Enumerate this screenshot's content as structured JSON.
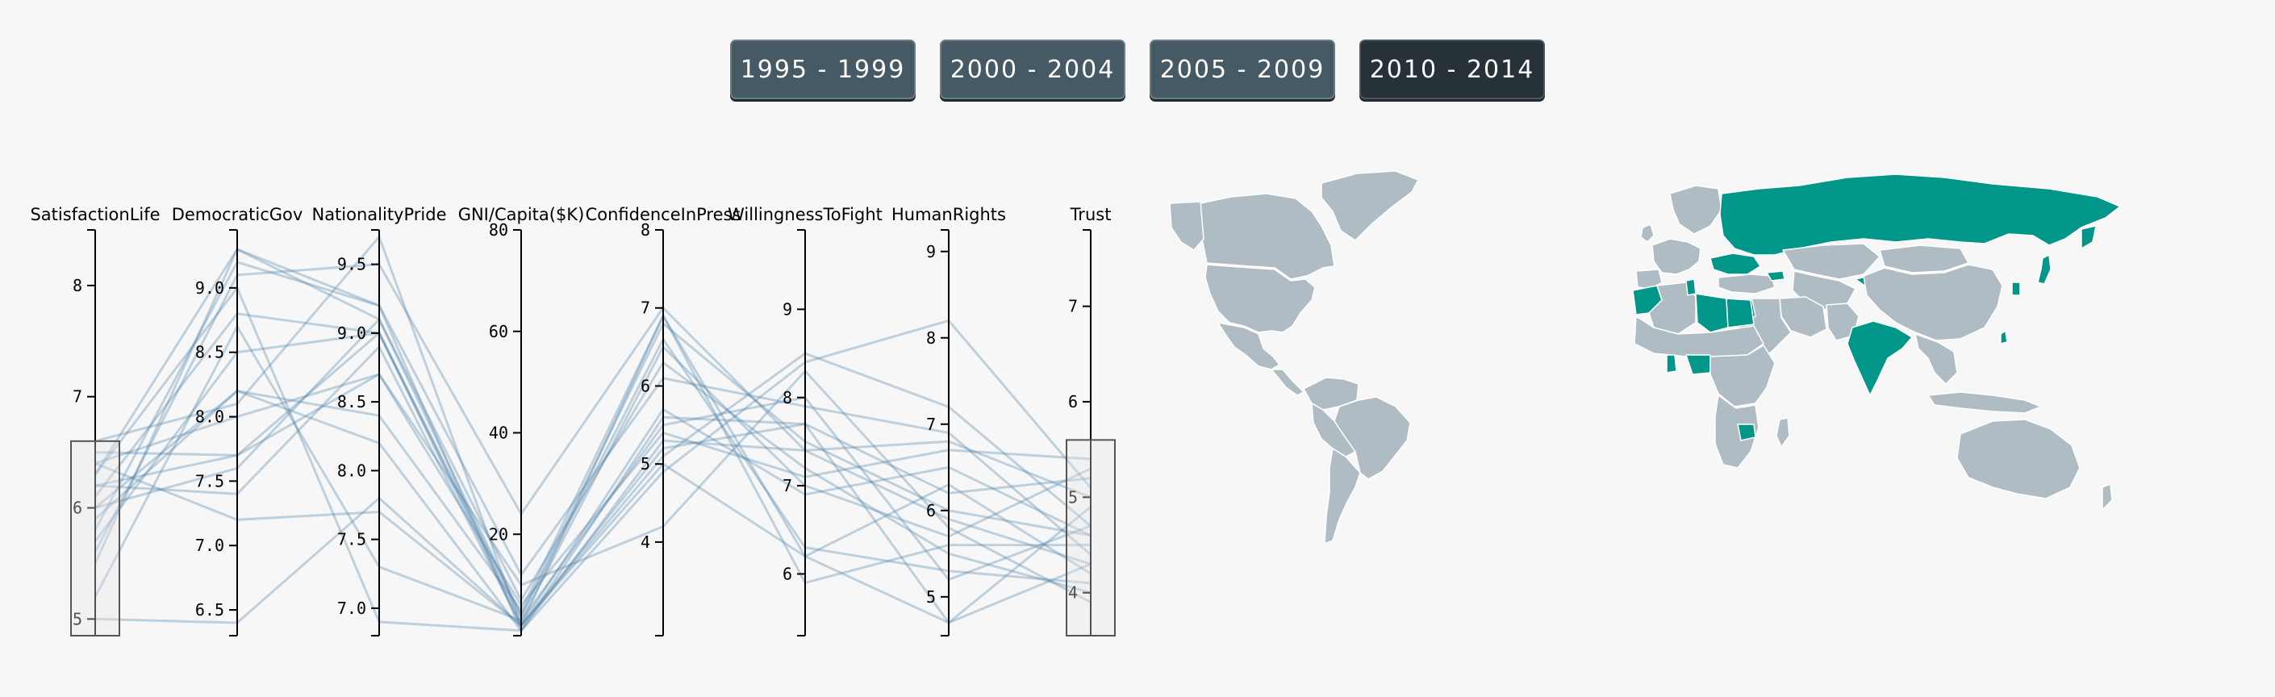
{
  "periods": [
    {
      "label": "1995 - 1999",
      "active": false
    },
    {
      "label": "2000 - 2004",
      "active": false
    },
    {
      "label": "2005 - 2009",
      "active": false
    },
    {
      "label": "2010 - 2014",
      "active": true
    }
  ],
  "colors": {
    "button": "#455a64",
    "button_active": "#263238",
    "line": "#4a7fa8",
    "highlight_country": "#00968a",
    "country": "#b0bcc3",
    "axis": "#000000"
  },
  "chart_data": {
    "type": "parallel-coordinates",
    "axes": [
      {
        "name": "SatisfactionLife",
        "domain": [
          4.85,
          8.5
        ],
        "ticks": [
          5,
          6,
          7,
          8
        ],
        "brush": [
          4.85,
          6.6
        ]
      },
      {
        "name": "DemocraticGov",
        "domain": [
          6.3,
          9.45
        ],
        "ticks": [
          6.5,
          7.0,
          7.5,
          8.0,
          8.5,
          9.0
        ],
        "decimals": 1
      },
      {
        "name": "NationalityPride",
        "domain": [
          6.8,
          9.75
        ],
        "ticks": [
          7.0,
          7.5,
          8.0,
          8.5,
          9.0,
          9.5
        ],
        "decimals": 1
      },
      {
        "name": "GNI/Capita($K)",
        "domain": [
          0,
          80
        ],
        "ticks": [
          20,
          40,
          60,
          80
        ]
      },
      {
        "name": "ConfidenceInPress",
        "domain": [
          2.8,
          8
        ],
        "ticks": [
          4,
          5,
          6,
          7,
          8
        ]
      },
      {
        "name": "WillingnessToFight",
        "domain": [
          5.3,
          9.9
        ],
        "ticks": [
          6,
          7,
          8,
          9
        ]
      },
      {
        "name": "HumanRights",
        "domain": [
          4.55,
          9.25
        ],
        "ticks": [
          5,
          6,
          7,
          8,
          9
        ]
      },
      {
        "name": "Trust",
        "domain": [
          3.55,
          7.8
        ],
        "ticks": [
          4,
          5,
          6,
          7
        ],
        "brush": [
          3.55,
          5.6
        ]
      }
    ],
    "lines": [
      [
        5.0,
        6.4,
        7.8,
        2,
        5.0,
        6.2,
        4.7,
        4.3
      ],
      [
        5.2,
        8.7,
        7.3,
        3,
        6.5,
        7.0,
        5.7,
        5.3
      ],
      [
        5.5,
        9.3,
        9.1,
        4,
        6.8,
        7.5,
        6.0,
        4.6
      ],
      [
        5.8,
        9.2,
        9.2,
        1,
        4.9,
        8.4,
        8.2,
        5.1
      ],
      [
        5.9,
        8.2,
        8.4,
        5,
        6.9,
        6.2,
        6.3,
        4.2
      ],
      [
        6.0,
        7.6,
        9.1,
        7,
        6.3,
        7.2,
        5.5,
        4.0
      ],
      [
        6.1,
        8.8,
        9.0,
        3,
        5.5,
        8.0,
        5.2,
        4.7
      ],
      [
        6.2,
        7.4,
        8.9,
        2,
        5.2,
        7.7,
        4.7,
        4.9
      ],
      [
        6.3,
        9.3,
        9.2,
        12,
        6.1,
        7.9,
        6.9,
        4.4
      ],
      [
        6.4,
        8.0,
        8.7,
        6,
        5.4,
        7.1,
        6.7,
        5.4
      ],
      [
        6.5,
        7.7,
        9.0,
        4,
        6.6,
        6.3,
        5.3,
        4.1
      ],
      [
        6.6,
        8.1,
        9.7,
        2,
        5.7,
        6.9,
        6.5,
        4.6
      ],
      [
        6.4,
        7.2,
        7.7,
        2,
        6.9,
        5.9,
        5.6,
        4.5
      ],
      [
        5.6,
        9.1,
        9.5,
        24,
        7.0,
        7.4,
        6.8,
        5.0
      ],
      [
        6.2,
        7.7,
        8.7,
        10,
        4.2,
        8.3,
        5.8,
        3.9
      ],
      [
        5.7,
        8.5,
        9.0,
        2,
        5.1,
        8.5,
        7.2,
        4.7
      ],
      [
        6.0,
        8.2,
        8.2,
        1,
        5.6,
        7.7,
        6.2,
        5.2
      ],
      [
        6.3,
        9.0,
        6.9,
        1,
        5.3,
        7.4,
        5.9,
        4.3
      ]
    ],
    "map": {
      "highlighted": [
        "Russia",
        "Egypt",
        "India",
        "Nigeria",
        "Zimbabwe",
        "Morocco",
        "Tunisia",
        "Ghana",
        "Jordan",
        "Kyrgyzstan",
        "South Korea",
        "Taiwan",
        "Ukraine",
        "Georgia",
        "Libya"
      ]
    }
  }
}
